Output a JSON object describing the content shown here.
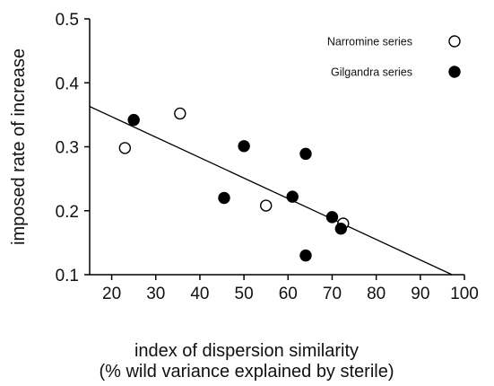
{
  "chart_data": {
    "type": "scatter",
    "title": "",
    "xlabel_line1": "index of  dispersion similarity",
    "xlabel_line2": "(% wild variance explained by sterile)",
    "ylabel": "imposed rate of increase",
    "xlim": [
      15,
      100
    ],
    "ylim": [
      0.1,
      0.5
    ],
    "x_ticks": [
      20,
      30,
      40,
      50,
      60,
      70,
      80,
      90,
      100
    ],
    "y_ticks": [
      0.1,
      0.2,
      0.3,
      0.4,
      0.5
    ],
    "y_tick_labels": [
      "0.1",
      "0.2",
      "0.3",
      "0.4",
      "0.5"
    ],
    "grid": false,
    "legend_position": "top-right",
    "series": [
      {
        "name": "Narromine series",
        "marker": "open-circle",
        "points": [
          {
            "x": 23,
            "y": 0.298
          },
          {
            "x": 35.5,
            "y": 0.352
          },
          {
            "x": 55,
            "y": 0.208
          },
          {
            "x": 72.5,
            "y": 0.18
          }
        ]
      },
      {
        "name": "Gilgandra series",
        "marker": "filled-circle",
        "points": [
          {
            "x": 25,
            "y": 0.342
          },
          {
            "x": 45.5,
            "y": 0.22
          },
          {
            "x": 50,
            "y": 0.301
          },
          {
            "x": 61,
            "y": 0.222
          },
          {
            "x": 64,
            "y": 0.289
          },
          {
            "x": 64,
            "y": 0.13
          },
          {
            "x": 70,
            "y": 0.19
          },
          {
            "x": 72,
            "y": 0.172
          }
        ]
      }
    ],
    "regression_line": {
      "x": [
        15,
        97.2
      ],
      "y": [
        0.363,
        0.1
      ]
    },
    "colors": {
      "marker_stroke": "#000000",
      "filled_marker": "#000000",
      "open_marker": "#ffffff",
      "line": "#000000",
      "axis": "#000000"
    }
  }
}
